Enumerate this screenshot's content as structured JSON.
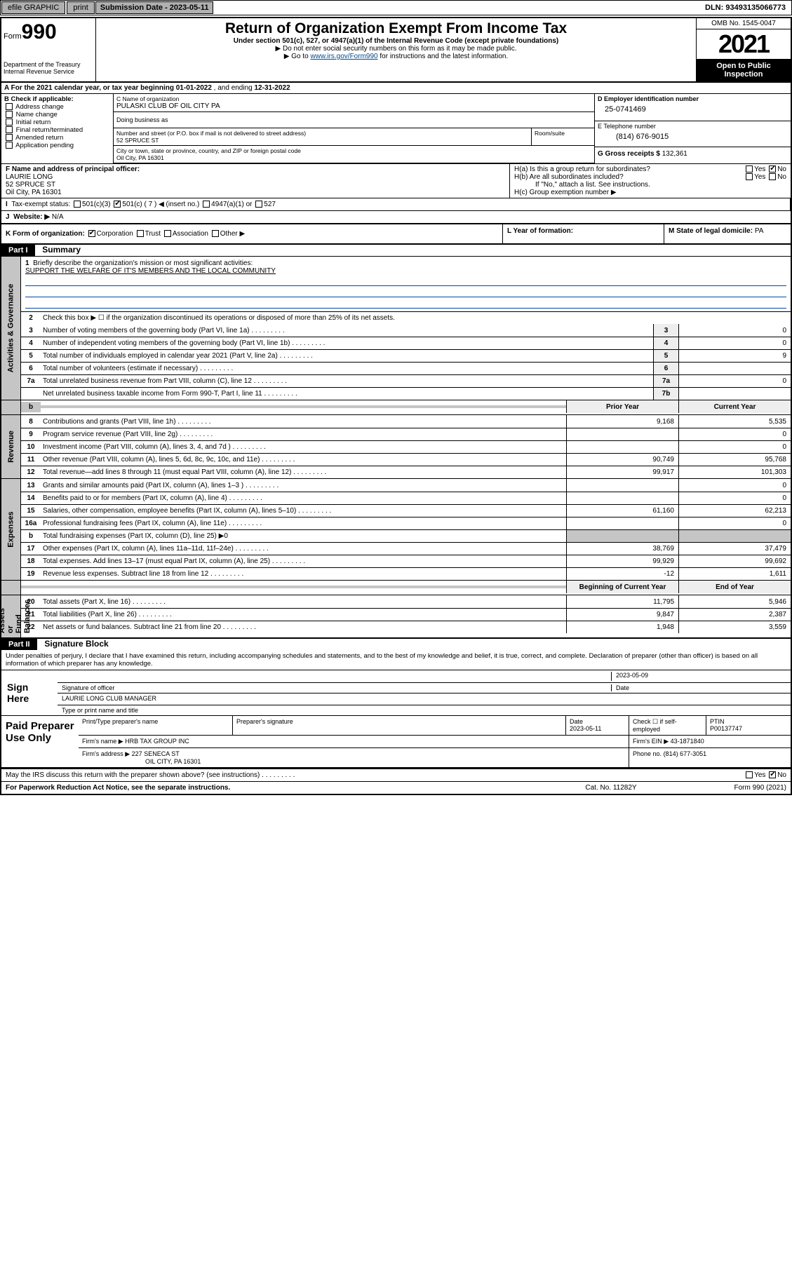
{
  "topbar": {
    "efile": "efile GRAPHIC",
    "print": "print",
    "sub_label": "Submission Date - 2023-05-11",
    "dln": "DLN: 93493135066773"
  },
  "header": {
    "form_word": "Form",
    "form_num": "990",
    "dept": "Department of the Treasury\nInternal Revenue Service",
    "title": "Return of Organization Exempt From Income Tax",
    "sub": "Under section 501(c), 527, or 4947(a)(1) of the Internal Revenue Code (except private foundations)",
    "note1": "▶ Do not enter social security numbers on this form as it may be made public.",
    "note2_pre": "▶ Go to ",
    "note2_link": "www.irs.gov/Form990",
    "note2_post": " for instructions and the latest information.",
    "omb": "OMB No. 1545-0047",
    "year": "2021",
    "openpub": "Open to Public\nInspection"
  },
  "A": {
    "text_pre": "A For the 2021 calendar year, or tax year beginning ",
    "begin": "01-01-2022",
    "mid": " , and ending ",
    "end": "12-31-2022"
  },
  "B": {
    "label": "B Check if applicable:",
    "items": [
      "Address change",
      "Name change",
      "Initial return",
      "Final return/terminated",
      "Amended return",
      "Application pending"
    ]
  },
  "C": {
    "name_lbl": "C Name of organization",
    "name": "PULASKI CLUB OF OIL CITY PA",
    "dba_lbl": "Doing business as",
    "street_lbl": "Number and street (or P.O. box if mail is not delivered to street address)",
    "street": "52 SPRUCE ST",
    "room_lbl": "Room/suite",
    "city_lbl": "City or town, state or province, country, and ZIP or foreign postal code",
    "city": "Oil City, PA  16301"
  },
  "D": {
    "lbl": "D Employer identification number",
    "val": "25-0741469"
  },
  "E": {
    "lbl": "E Telephone number",
    "val": "(814) 676-9015"
  },
  "G": {
    "lbl": "G Gross receipts $",
    "val": "132,361"
  },
  "F": {
    "lbl": "F Name and address of principal officer:",
    "name": "LAURIE LONG",
    "addr1": "52 SPRUCE ST",
    "addr2": "Oil City, PA  16301"
  },
  "H": {
    "a": "H(a)  Is this a group return for subordinates?",
    "b": "H(b)  Are all subordinates included?",
    "b2": "If \"No,\" attach a list. See instructions.",
    "c": "H(c)  Group exemption number ▶",
    "yes": "Yes",
    "no": "No"
  },
  "I": {
    "lbl": "Tax-exempt status:",
    "o1": "501(c)(3)",
    "o2": "501(c) ( 7 ) ◀ (insert no.)",
    "o3": "4947(a)(1) or",
    "o4": "527"
  },
  "J": {
    "lbl": "Website: ▶",
    "val": "N/A"
  },
  "K": {
    "lbl": "K Form of organization:",
    "o1": "Corporation",
    "o2": "Trust",
    "o3": "Association",
    "o4": "Other ▶"
  },
  "L": {
    "lbl": "L Year of formation:"
  },
  "M": {
    "lbl": "M State of legal domicile:",
    "val": "PA"
  },
  "part1": {
    "hdr": "Part I",
    "title": "Summary",
    "l1": "Briefly describe the organization's mission or most significant activities:",
    "l1v": "SUPPORT THE WELFARE OF IT'S MEMBERS AND THE LOCAL COMMUNITY",
    "l2": "Check this box ▶ ☐  if the organization discontinued its operations or disposed of more than 25% of its net assets.",
    "lines_ag": [
      {
        "n": "3",
        "d": "Number of voting members of the governing body (Part VI, line 1a)",
        "b": "3",
        "v": "0"
      },
      {
        "n": "4",
        "d": "Number of independent voting members of the governing body (Part VI, line 1b)",
        "b": "4",
        "v": "0"
      },
      {
        "n": "5",
        "d": "Total number of individuals employed in calendar year 2021 (Part V, line 2a)",
        "b": "5",
        "v": "9"
      },
      {
        "n": "6",
        "d": "Total number of volunteers (estimate if necessary)",
        "b": "6",
        "v": ""
      },
      {
        "n": "7a",
        "d": "Total unrelated business revenue from Part VIII, column (C), line 12",
        "b": "7a",
        "v": "0"
      },
      {
        "n": "",
        "d": "Net unrelated business taxable income from Form 990-T, Part I, line 11",
        "b": "7b",
        "v": ""
      }
    ],
    "col_prior": "Prior Year",
    "col_curr": "Current Year",
    "rev": [
      {
        "n": "8",
        "d": "Contributions and grants (Part VIII, line 1h)",
        "p": "9,168",
        "c": "5,535"
      },
      {
        "n": "9",
        "d": "Program service revenue (Part VIII, line 2g)",
        "p": "",
        "c": "0"
      },
      {
        "n": "10",
        "d": "Investment income (Part VIII, column (A), lines 3, 4, and 7d )",
        "p": "",
        "c": "0"
      },
      {
        "n": "11",
        "d": "Other revenue (Part VIII, column (A), lines 5, 6d, 8c, 9c, 10c, and 11e)",
        "p": "90,749",
        "c": "95,768"
      },
      {
        "n": "12",
        "d": "Total revenue—add lines 8 through 11 (must equal Part VIII, column (A), line 12)",
        "p": "99,917",
        "c": "101,303"
      }
    ],
    "exp": [
      {
        "n": "13",
        "d": "Grants and similar amounts paid (Part IX, column (A), lines 1–3 )",
        "p": "",
        "c": "0"
      },
      {
        "n": "14",
        "d": "Benefits paid to or for members (Part IX, column (A), line 4)",
        "p": "",
        "c": "0"
      },
      {
        "n": "15",
        "d": "Salaries, other compensation, employee benefits (Part IX, column (A), lines 5–10)",
        "p": "61,160",
        "c": "62,213"
      },
      {
        "n": "16a",
        "d": "Professional fundraising fees (Part IX, column (A), line 11e)",
        "p": "",
        "c": "0"
      },
      {
        "n": "b",
        "d": "Total fundraising expenses (Part IX, column (D), line 25) ▶0",
        "noval": true
      },
      {
        "n": "17",
        "d": "Other expenses (Part IX, column (A), lines 11a–11d, 11f–24e)",
        "p": "38,769",
        "c": "37,479"
      },
      {
        "n": "18",
        "d": "Total expenses. Add lines 13–17 (must equal Part IX, column (A), line 25)",
        "p": "99,929",
        "c": "99,692"
      },
      {
        "n": "19",
        "d": "Revenue less expenses. Subtract line 18 from line 12",
        "p": "-12",
        "c": "1,611"
      }
    ],
    "col_beg": "Beginning of Current Year",
    "col_end": "End of Year",
    "na": [
      {
        "n": "20",
        "d": "Total assets (Part X, line 16)",
        "p": "11,795",
        "c": "5,946"
      },
      {
        "n": "21",
        "d": "Total liabilities (Part X, line 26)",
        "p": "9,847",
        "c": "2,387"
      },
      {
        "n": "22",
        "d": "Net assets or fund balances. Subtract line 21 from line 20",
        "p": "1,948",
        "c": "3,559"
      }
    ],
    "side_ag": "Activities & Governance",
    "side_rev": "Revenue",
    "side_exp": "Expenses",
    "side_na": "Net Assets or\nFund Balances"
  },
  "part2": {
    "hdr": "Part II",
    "title": "Signature Block",
    "penalty": "Under penalties of perjury, I declare that I have examined this return, including accompanying schedules and statements, and to the best of my knowledge and belief, it is true, correct, and complete. Declaration of preparer (other than officer) is based on all information of which preparer has any knowledge.",
    "sign_here": "Sign Here",
    "sig_officer": "Signature of officer",
    "sig_date": "Date",
    "sig_date_v": "2023-05-09",
    "name_title": "LAURIE LONG CLUB MANAGER",
    "name_lbl": "Type or print name and title",
    "paid": "Paid Preparer Use Only",
    "p_name_lbl": "Print/Type preparer's name",
    "p_sig_lbl": "Preparer's signature",
    "p_date_lbl": "Date",
    "p_date": "2023-05-11",
    "p_check": "Check ☐ if self-employed",
    "p_ptin_lbl": "PTIN",
    "p_ptin": "P00137747",
    "firm_name_lbl": "Firm's name  ▶",
    "firm_name": "HRB TAX GROUP INC",
    "firm_ein_lbl": "Firm's EIN ▶",
    "firm_ein": "43-1871840",
    "firm_addr_lbl": "Firm's address ▶",
    "firm_addr": "227 SENECA ST",
    "firm_city": "OIL CITY, PA  16301",
    "firm_phone_lbl": "Phone no.",
    "firm_phone": "(814) 677-3051",
    "may_irs": "May the IRS discuss this return with the preparer shown above? (see instructions)"
  },
  "footer": {
    "f1": "For Paperwork Reduction Act Notice, see the separate instructions.",
    "f2": "Cat. No. 11282Y",
    "f3": "Form 990 (2021)"
  }
}
